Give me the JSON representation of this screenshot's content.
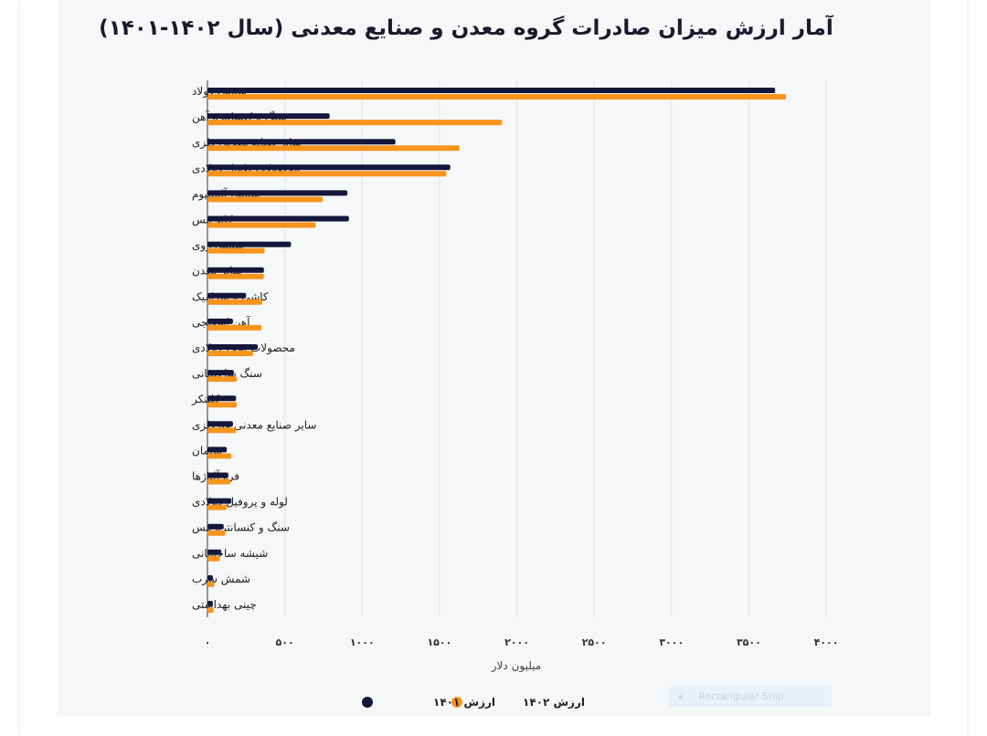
{
  "chart_data": {
    "type": "bar",
    "orientation": "horizontal",
    "title": "آمار ارزش میزان صادرات گروه معدن و صنایع معدنی (سال ۱۴۰۲-۱۴۰۱)",
    "xlabel": "میلیون دلار",
    "ylabel": "",
    "xlim": [
      0,
      4000
    ],
    "xticks": [
      0,
      500,
      1000,
      1500,
      2000,
      2500,
      3000,
      3500,
      4000
    ],
    "xtick_labels": [
      "۰",
      "۵۰۰",
      "۱۰۰۰",
      "۱۵۰۰",
      "۲۰۰۰",
      "۲۵۰۰",
      "۳۰۰۰",
      "۳۵۰۰",
      "۴۰۰۰"
    ],
    "grid": true,
    "legend_position": "bottom",
    "categories": [
      "شمش فولاد",
      "سنگ و کنسانتره آهن",
      "سایر صنایع معدنی فلزی",
      "محصولات طویل فولادی",
      "شمش آلمینیوم",
      "کاتد مس",
      "شمش روی",
      "سایر معدن",
      "کاشی و سرامیک",
      "آهن اسفنجی",
      "محصولات تخت فولادی",
      "سنگ ساختمانی",
      "کلینکر",
      "سایر صنایع معدنی غیرفلزی",
      "سیمان",
      "فرو آلیاژها",
      "لوله و پروفیل فولادی",
      "سنگ و کنسانتره مس",
      "شیشه ساختمانی",
      "شمش سرب",
      "چینی بهداشتی"
    ],
    "series": [
      {
        "name": "ارزش ۱۴۰۱",
        "color": "#14163a",
        "values": [
          3670,
          790,
          1215,
          1570,
          905,
          915,
          540,
          365,
          250,
          165,
          325,
          170,
          185,
          165,
          125,
          135,
          155,
          105,
          90,
          35,
          35
        ]
      },
      {
        "name": "ارزش ۱۴۰۲",
        "color": "#f7941d",
        "values": [
          3740,
          1905,
          1630,
          1545,
          745,
          700,
          370,
          365,
          355,
          350,
          295,
          190,
          190,
          185,
          155,
          150,
          125,
          115,
          80,
          45,
          40
        ]
      }
    ]
  },
  "overlay": {
    "snip_label": "Rectangular Snip"
  }
}
